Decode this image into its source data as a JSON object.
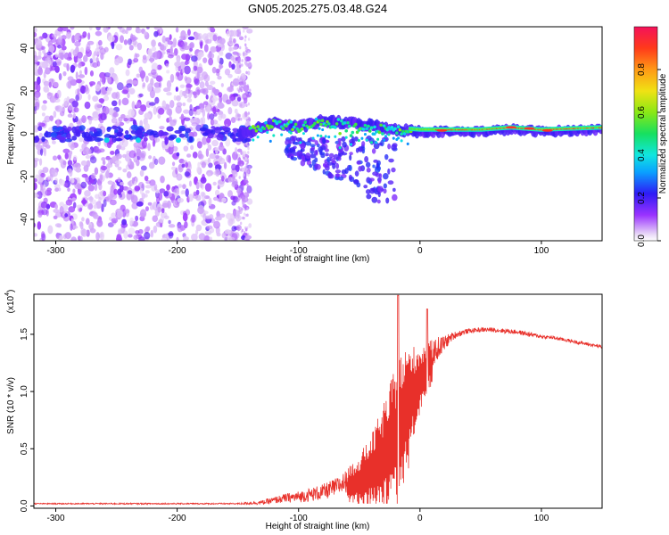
{
  "title": "GN05.2025.275.03.48.G24",
  "chart_data": [
    {
      "type": "heatmap",
      "xlabel": "Height of straight line (km)",
      "ylabel": "Frequency (Hz)",
      "xlim": [
        -318,
        150
      ],
      "ylim": [
        -50,
        50
      ],
      "xticks": [
        -300,
        -200,
        -100,
        0,
        100
      ],
      "xtick_labels": [
        "-300",
        "-200",
        "-100",
        "0",
        "100"
      ],
      "yticks": [
        -40,
        -20,
        0,
        20,
        40
      ],
      "ytick_labels": [
        "-40",
        "-20",
        "0",
        "20",
        "40"
      ],
      "colorbar": {
        "label": "Normalized spectral amplitude",
        "range": [
          0,
          1
        ],
        "ticks": [
          0.0,
          0.2,
          0.4,
          0.6,
          0.8
        ],
        "tick_labels": [
          "0.0",
          "0.2",
          "0.4",
          "0.6",
          "0.8"
        ]
      },
      "ridge": {
        "description_x_km": [
          -145,
          -120,
          -100,
          -80,
          -60,
          -40,
          -20,
          0,
          20,
          50,
          75,
          100,
          150
        ],
        "frequency_hz": [
          0,
          5,
          3,
          6,
          5,
          4,
          2,
          1,
          1,
          1,
          2,
          1,
          2
        ]
      }
    },
    {
      "type": "line",
      "xlabel": "Height of straight line (km)",
      "ylabel": "SNR (10 * v/v)",
      "exponent_label": "(x10",
      "exponent_power": "4",
      "exponent_close": ")",
      "xlim": [
        -318,
        150
      ],
      "ylim": [
        -0.02,
        1.85
      ],
      "xticks": [
        -300,
        -200,
        -100,
        0,
        100
      ],
      "xtick_labels": [
        "-300",
        "-200",
        "-100",
        "0",
        "100"
      ],
      "yticks": [
        0.0,
        0.5,
        1.0,
        1.5
      ],
      "ytick_labels": [
        "0.0",
        "0.5",
        "1.0",
        "1.5"
      ],
      "series": [
        {
          "name": "SNR",
          "color": "#e8302a",
          "x": [
            -318,
            -250,
            -200,
            -150,
            -130,
            -120,
            -110,
            -100,
            -90,
            -80,
            -70,
            -60,
            -50,
            -40,
            -30,
            -25,
            -20,
            -15,
            -10,
            -5,
            0,
            5,
            10,
            15,
            20,
            25,
            30,
            40,
            50,
            60,
            70,
            80,
            90,
            100,
            110,
            120,
            130,
            140,
            150
          ],
          "y": [
            0.02,
            0.02,
            0.02,
            0.02,
            0.03,
            0.05,
            0.07,
            0.08,
            0.1,
            0.12,
            0.16,
            0.22,
            0.3,
            0.42,
            0.6,
            0.7,
            0.85,
            0.95,
            1.05,
            1.15,
            1.2,
            1.28,
            1.33,
            1.38,
            1.42,
            1.47,
            1.5,
            1.53,
            1.54,
            1.54,
            1.53,
            1.52,
            1.5,
            1.48,
            1.47,
            1.45,
            1.43,
            1.41,
            1.39
          ],
          "noise": [
            0.005,
            0.006,
            0.006,
            0.006,
            0.02,
            0.03,
            0.04,
            0.05,
            0.06,
            0.07,
            0.08,
            0.1,
            0.15,
            0.2,
            0.3,
            0.35,
            0.4,
            0.4,
            0.35,
            0.25,
            0.2,
            0.15,
            0.12,
            0.1,
            0.07,
            0.04,
            0.03,
            0.02,
            0.02,
            0.02,
            0.02,
            0.02,
            0.02,
            0.015,
            0.015,
            0.015,
            0.015,
            0.015,
            0.015
          ]
        }
      ]
    }
  ]
}
